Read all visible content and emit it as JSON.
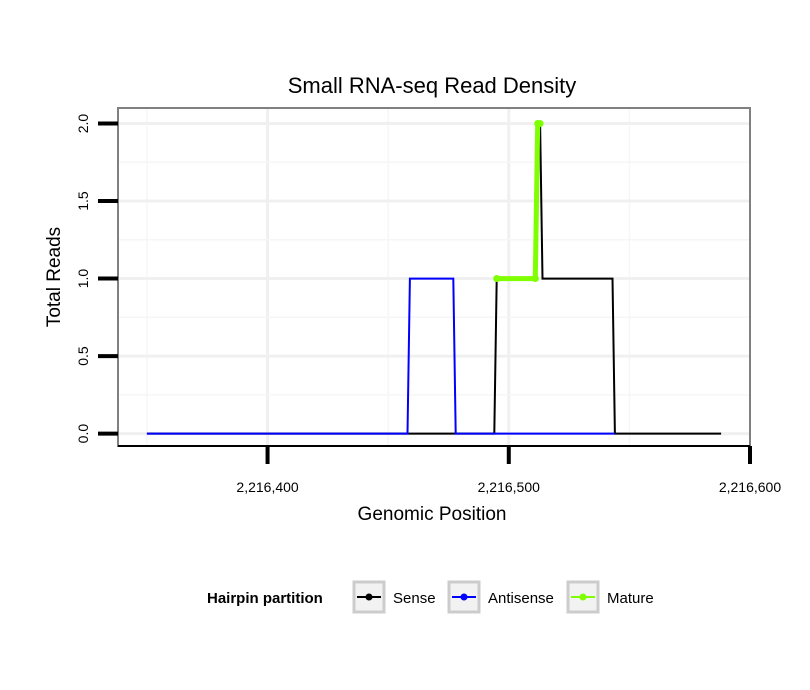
{
  "chart_data": {
    "type": "line",
    "title": "Small RNA-seq Read Density",
    "xlabel": "Genomic Position",
    "ylabel": "Total Reads",
    "xlim": [
      2216338,
      2216600
    ],
    "ylim": [
      -0.08,
      2.1
    ],
    "x_ticks": [
      2216400,
      2216500,
      2216600
    ],
    "x_tick_labels": [
      "2,216,400",
      "2,216,500",
      "2,216,600"
    ],
    "y_ticks": [
      0.0,
      0.5,
      1.0,
      1.5,
      2.0
    ],
    "y_tick_labels": [
      "0.0",
      "0.5",
      "1.0",
      "1.5",
      "2.0"
    ],
    "grid": true,
    "legend_position": "bottom",
    "legend_title": "Hairpin partition",
    "series": [
      {
        "name": "Sense",
        "color": "#000000",
        "x": [
          2216350,
          2216494,
          2216495,
          2216511,
          2216512,
          2216513,
          2216514,
          2216543,
          2216544,
          2216588
        ],
        "y": [
          0,
          0,
          1,
          1,
          2,
          2,
          1,
          1,
          0,
          0
        ]
      },
      {
        "name": "Antisense",
        "color": "#0000ff",
        "x": [
          2216350,
          2216458,
          2216459,
          2216477,
          2216478,
          2216544
        ],
        "y": [
          0,
          0,
          1,
          1,
          0,
          0
        ]
      },
      {
        "name": "Mature",
        "color": "#7fff00",
        "x": [
          2216495,
          2216511,
          2216512,
          2216513
        ],
        "y": [
          1,
          1,
          2,
          2
        ]
      }
    ]
  }
}
